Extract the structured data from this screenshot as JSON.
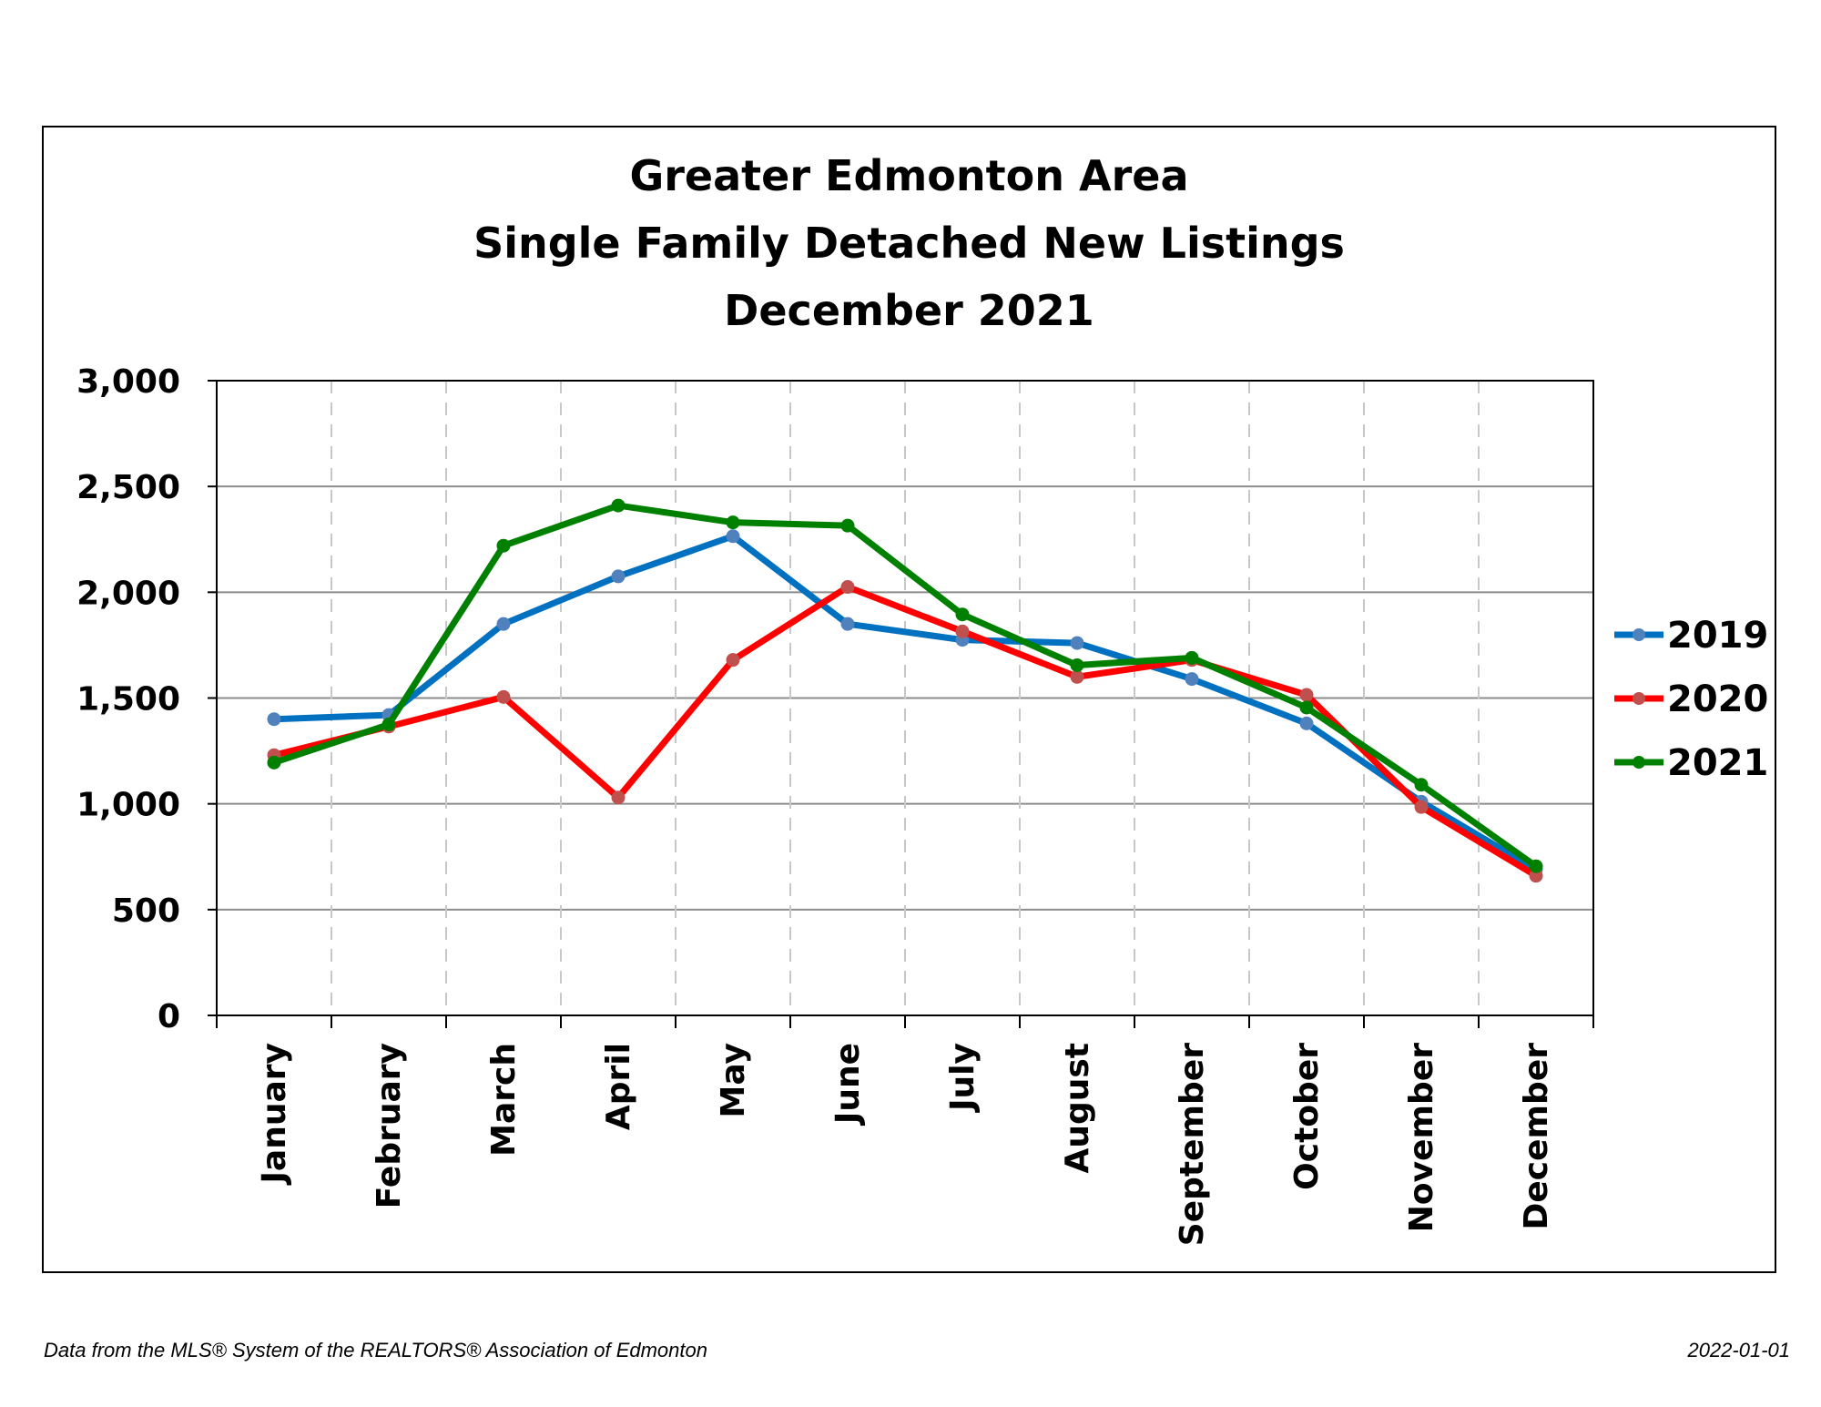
{
  "title_lines": [
    "Greater Edmonton Area",
    "Single Family Detached New Listings",
    "December 2021"
  ],
  "footer": {
    "source": "Data from the MLS® System of the REALTORS® Association of Edmonton",
    "date": "2022-01-01"
  },
  "chart_data": {
    "type": "line",
    "title": "Greater Edmonton Area Single Family Detached New Listings December 2021",
    "xlabel": "",
    "ylabel": "",
    "ylim": [
      0,
      3000
    ],
    "yticks": [
      0,
      500,
      1000,
      1500,
      2000,
      2500,
      3000
    ],
    "ytick_labels": [
      "0",
      "500",
      "1,000",
      "1,500",
      "2,000",
      "2,500",
      "3,000"
    ],
    "categories": [
      "January",
      "February",
      "March",
      "April",
      "May",
      "June",
      "July",
      "August",
      "September",
      "October",
      "November",
      "December"
    ],
    "grid": "horizontal solid, vertical dashed",
    "legend_position": "right",
    "series": [
      {
        "name": "2019",
        "color": "#0070C0",
        "marker_color": "#4F81BD",
        "values": [
          1400,
          1420,
          1850,
          2075,
          2265,
          1850,
          1775,
          1760,
          1590,
          1380,
          1010,
          690
        ]
      },
      {
        "name": "2020",
        "color": "#FF0000",
        "marker_color": "#C0504D",
        "values": [
          1230,
          1365,
          1505,
          1030,
          1680,
          2025,
          1815,
          1600,
          1680,
          1515,
          985,
          660
        ]
      },
      {
        "name": "2021",
        "color": "#008000",
        "marker_color": "#008000",
        "values": [
          1195,
          1375,
          2220,
          2410,
          2330,
          2315,
          1895,
          1655,
          1690,
          1455,
          1090,
          705
        ]
      }
    ]
  }
}
